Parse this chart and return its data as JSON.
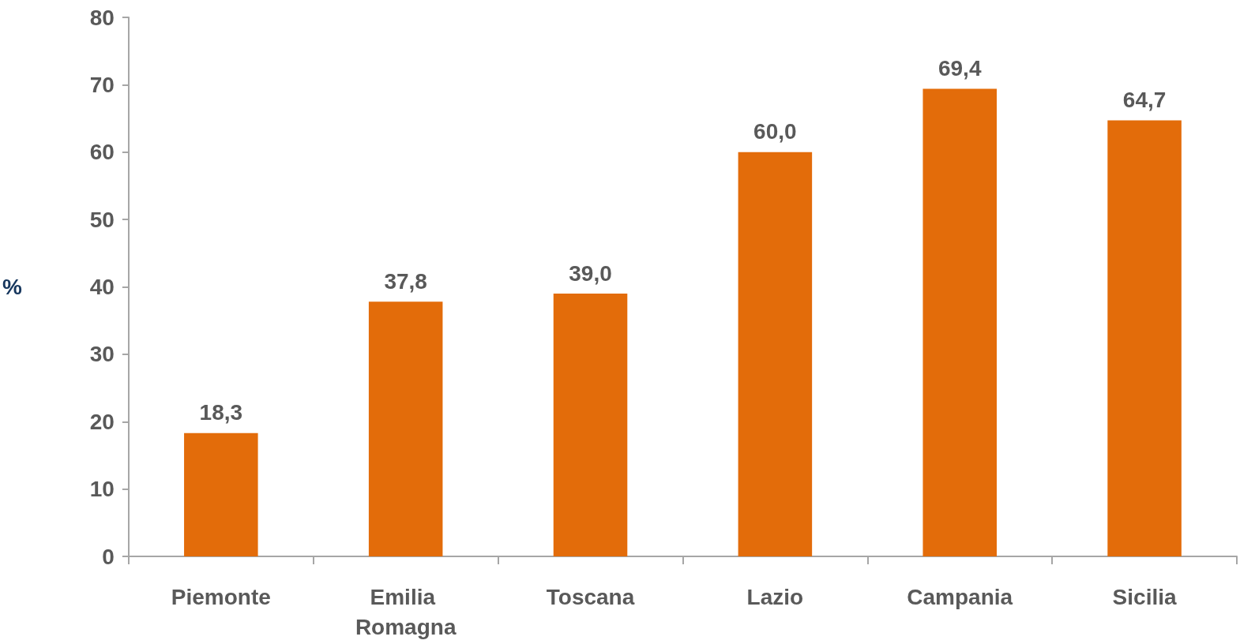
{
  "chart_data": {
    "type": "bar",
    "ylabel": "%",
    "categories": [
      "Piemonte",
      "Emilia Romagna",
      "Toscana",
      "Lazio",
      "Campania",
      "Sicilia"
    ],
    "values": [
      18.3,
      37.8,
      39.0,
      60.0,
      69.4,
      64.7
    ],
    "value_labels": [
      "18,3",
      "37,8",
      "39,0",
      "60,0",
      "69,4",
      "64,7"
    ],
    "color": "#e36c0a",
    "ylim": [
      0,
      80
    ],
    "yticks": [
      0,
      10,
      20,
      30,
      40,
      50,
      60,
      70,
      80
    ],
    "grid": false
  }
}
